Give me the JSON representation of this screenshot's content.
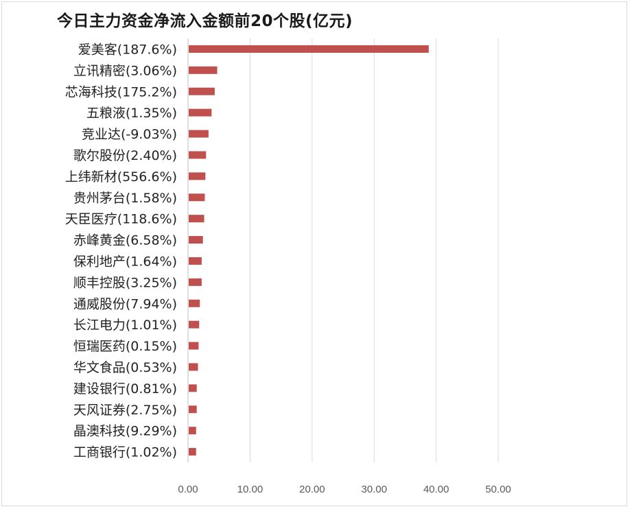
{
  "chart_data": {
    "type": "bar",
    "orientation": "horizontal",
    "title": "今日主力资金净流入金额前20个股(亿元)",
    "xlabel": "",
    "ylabel": "",
    "categories": [
      "爱美客(187.6%)",
      "立讯精密(3.06%)",
      "芯海科技(175.2%)",
      "五粮液(1.35%)",
      "竞业达(-9.03%)",
      "歌尔股份(2.40%)",
      "上纬新材(556.6%)",
      "贵州茅台(1.58%)",
      "天臣医疗(118.6%)",
      "赤峰黄金(6.58%)",
      "保利地产(1.64%)",
      "顺丰控股(3.25%)",
      "通威股份(7.94%)",
      "长江电力(1.01%)",
      "恒瑞医药(0.15%)",
      "华文食品(0.53%)",
      "建设银行(0.81%)",
      "天风证券(2.75%)",
      "晶澳科技(9.29%)",
      "工商银行(1.02%)"
    ],
    "values": [
      38.8,
      4.7,
      4.3,
      3.8,
      3.3,
      2.9,
      2.8,
      2.7,
      2.6,
      2.4,
      2.2,
      2.2,
      1.9,
      1.8,
      1.7,
      1.6,
      1.4,
      1.4,
      1.3,
      1.3
    ],
    "xlim": [
      0,
      50
    ],
    "ticks": [
      0,
      10,
      20,
      30,
      40,
      50
    ],
    "tick_labels": [
      "0.00",
      "10.00",
      "20.00",
      "30.00",
      "40.00",
      "50.00"
    ],
    "grid": true,
    "legend": "none",
    "bar_color": "#c0504d"
  }
}
